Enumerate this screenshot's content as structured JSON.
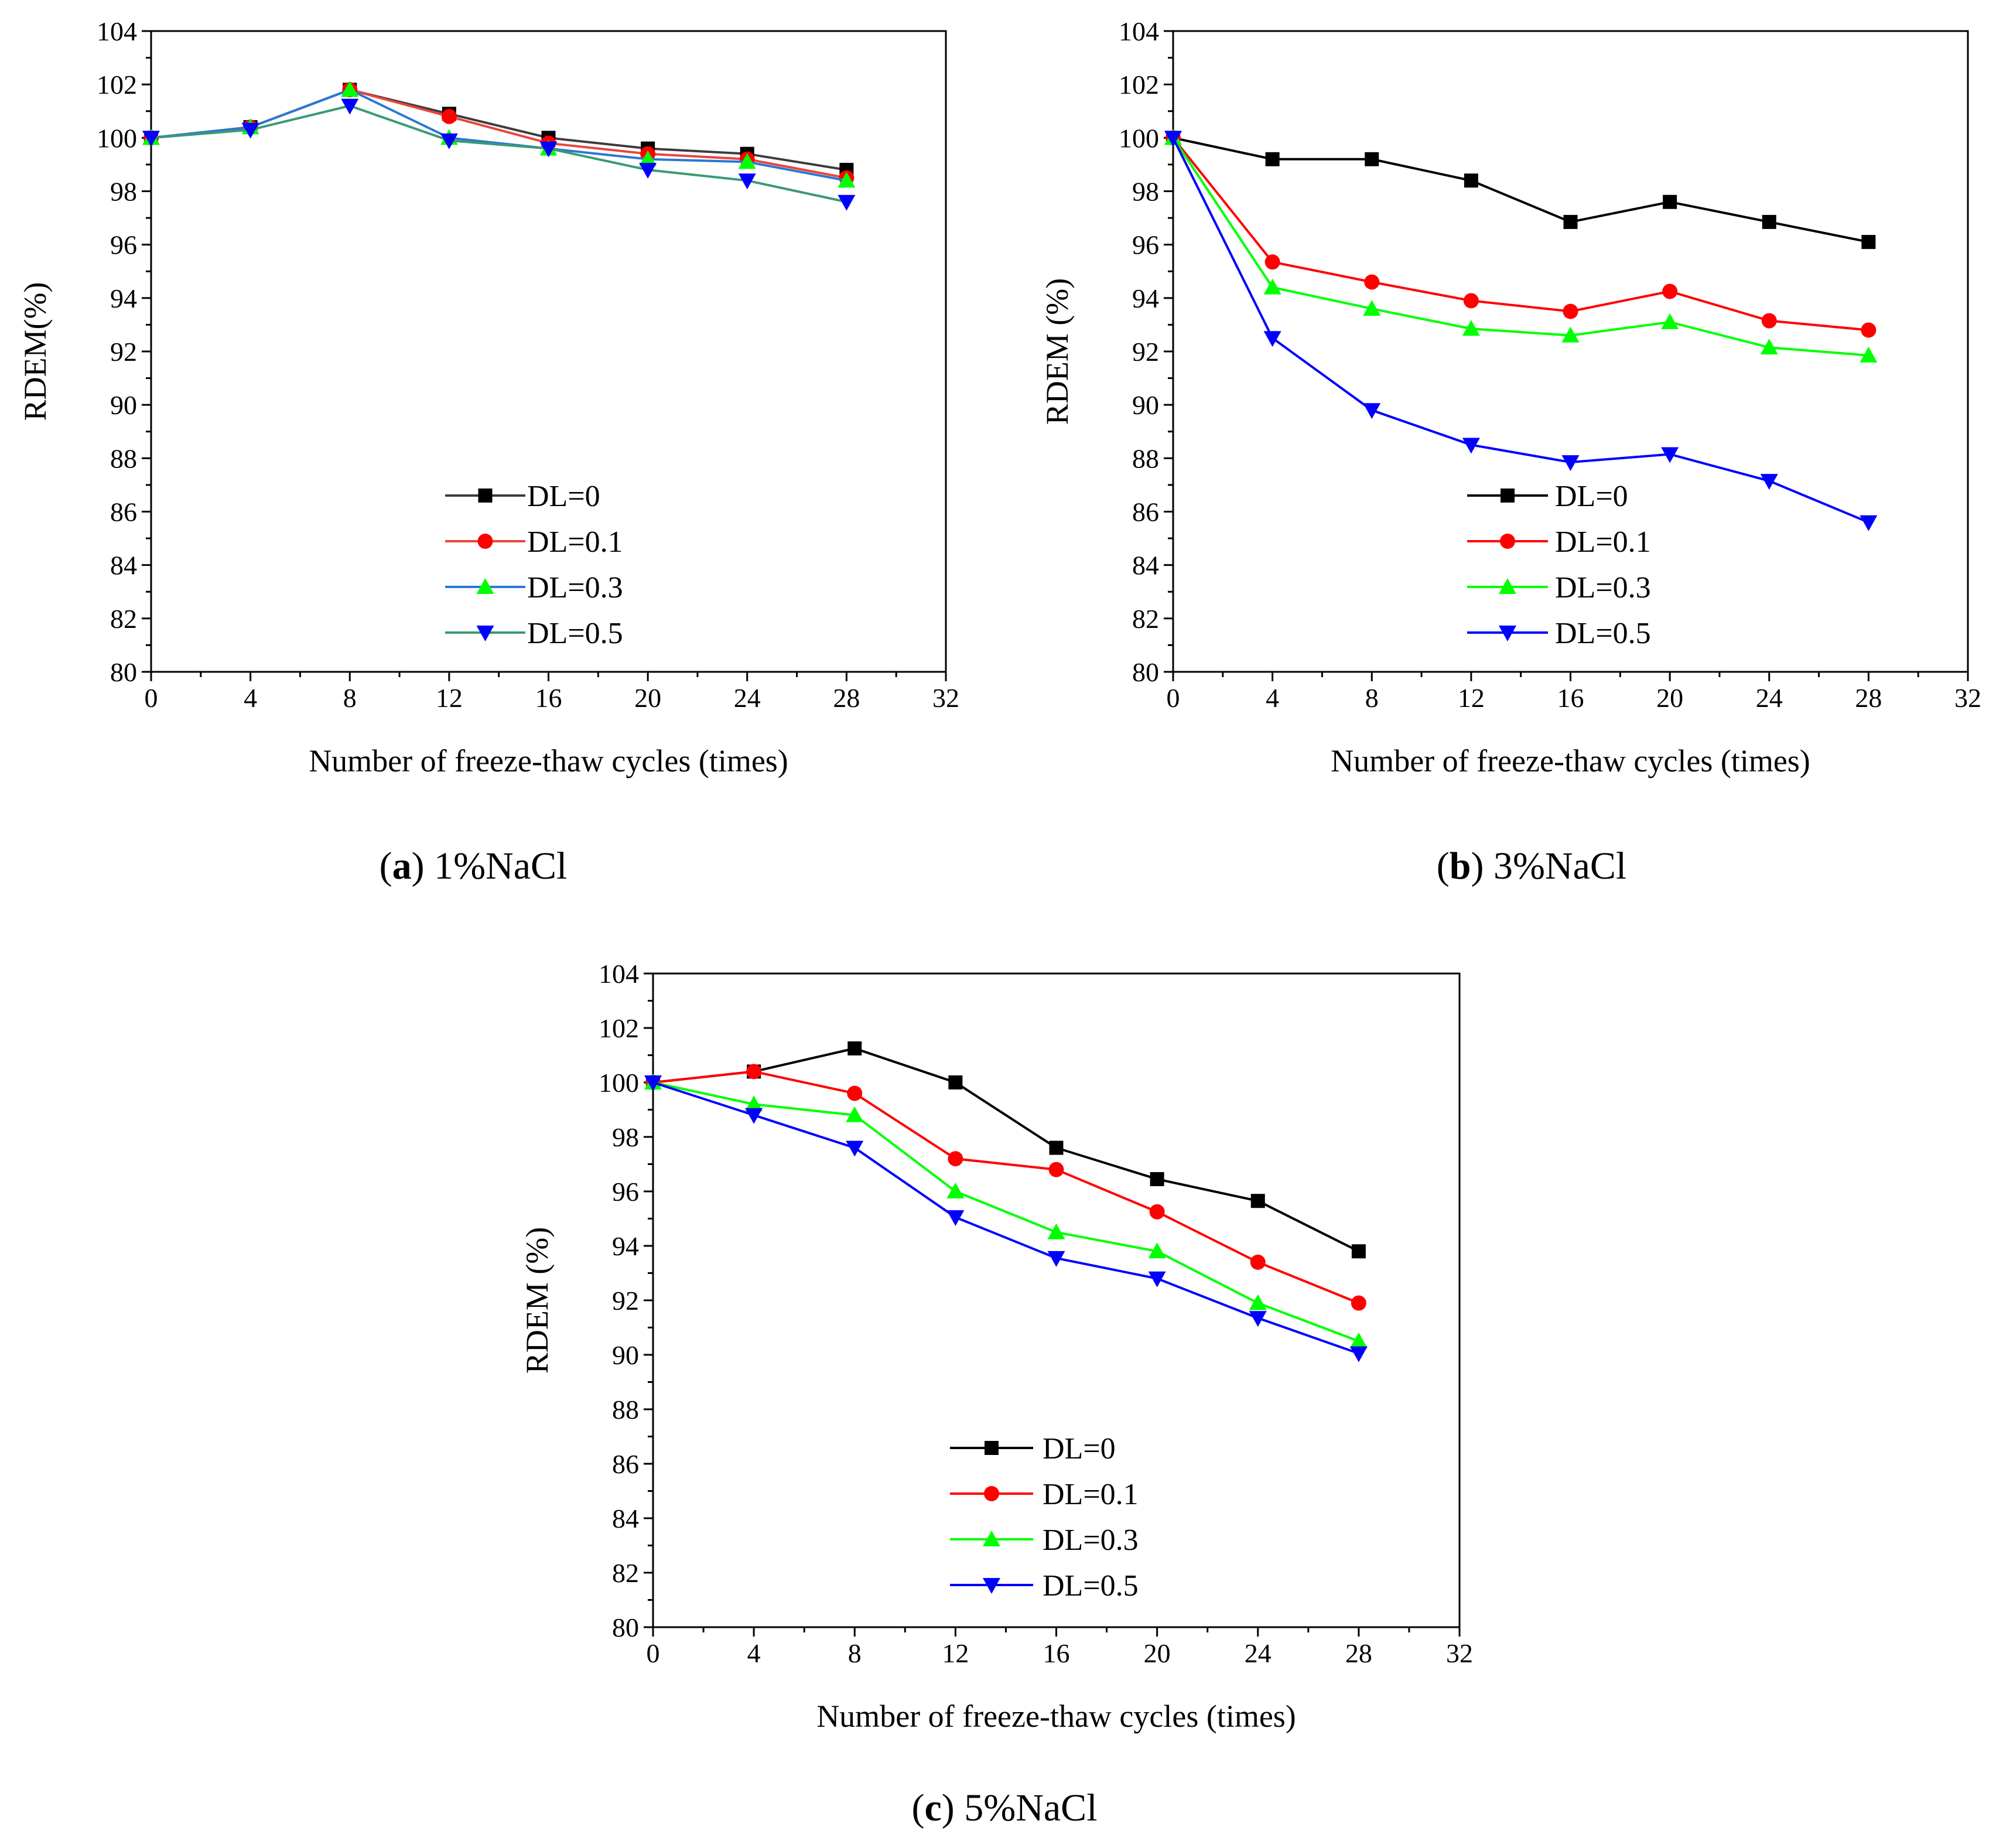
{
  "chart_data": [
    {
      "type": "line",
      "caption_letter": "a",
      "caption_text": "1%NaCl",
      "xlabel": "Number of freeze-thaw cycles (times)",
      "ylabel": "RDEM(%)",
      "xlim": [
        0,
        32
      ],
      "ylim": [
        80,
        104
      ],
      "xticks": [
        "0",
        "4",
        "8",
        "12",
        "16",
        "20",
        "24",
        "28",
        "32"
      ],
      "yticks": [
        "80",
        "82",
        "84",
        "86",
        "88",
        "90",
        "92",
        "94",
        "96",
        "98",
        "100",
        "102",
        "104"
      ],
      "legend_position": "bottom-center",
      "x": [
        0,
        4,
        8,
        12,
        16,
        20,
        24,
        28
      ],
      "series": [
        {
          "name": "DL=0",
          "color": "#3c3c3c",
          "marker": "square",
          "values": [
            100,
            100.4,
            101.8,
            100.9,
            100.0,
            99.6,
            99.4,
            98.8
          ]
        },
        {
          "name": "DL=0.1",
          "color": "#e8453c",
          "marker": "circle",
          "values": [
            100,
            100.4,
            101.8,
            100.8,
            99.8,
            99.4,
            99.2,
            98.5
          ]
        },
        {
          "name": "DL=0.3",
          "color": "#2a78d4",
          "marker": "triangle-up",
          "values": [
            100,
            100.4,
            101.8,
            100.0,
            99.6,
            99.2,
            99.1,
            98.4
          ]
        },
        {
          "name": "DL=0.5",
          "color": "#3a9a72",
          "marker": "triangle-down",
          "values": [
            100,
            100.3,
            101.2,
            99.9,
            99.6,
            98.8,
            98.4,
            97.6
          ]
        }
      ],
      "marker_colors": [
        "#000000",
        "#ff0000",
        "#00ff00",
        "#0000ff"
      ]
    },
    {
      "type": "line",
      "caption_letter": "b",
      "caption_text": "3%NaCl",
      "xlabel": "Number of freeze-thaw cycles (times)",
      "ylabel": "RDEM (%)",
      "xlim": [
        0,
        32
      ],
      "ylim": [
        80,
        104
      ],
      "xticks": [
        "0",
        "4",
        "8",
        "12",
        "16",
        "20",
        "24",
        "28",
        "32"
      ],
      "yticks": [
        "80",
        "82",
        "84",
        "86",
        "88",
        "90",
        "92",
        "94",
        "96",
        "98",
        "100",
        "102",
        "104"
      ],
      "legend_position": "bottom-center",
      "x": [
        0,
        4,
        8,
        12,
        16,
        20,
        24,
        28
      ],
      "series": [
        {
          "name": "DL=0",
          "color": "#000000",
          "marker": "square",
          "values": [
            100,
            99.2,
            99.2,
            98.4,
            96.85,
            97.6,
            96.85,
            96.1
          ]
        },
        {
          "name": "DL=0.1",
          "color": "#ff0000",
          "marker": "circle",
          "values": [
            100,
            95.35,
            94.6,
            93.9,
            93.5,
            94.25,
            93.15,
            92.8
          ]
        },
        {
          "name": "DL=0.3",
          "color": "#00ff00",
          "marker": "triangle-up",
          "values": [
            100,
            94.4,
            93.6,
            92.85,
            92.6,
            93.1,
            92.15,
            91.85
          ]
        },
        {
          "name": "DL=0.5",
          "color": "#0000ff",
          "marker": "triangle-down",
          "values": [
            100,
            92.5,
            89.8,
            88.5,
            87.85,
            88.15,
            87.15,
            85.6
          ]
        }
      ],
      "marker_colors": [
        "#000000",
        "#ff0000",
        "#00ff00",
        "#0000ff"
      ]
    },
    {
      "type": "line",
      "caption_letter": "c",
      "caption_text": "5%NaCl",
      "xlabel": "Number of freeze-thaw cycles (times)",
      "ylabel": "RDEM (%)",
      "xlim": [
        0,
        32
      ],
      "ylim": [
        80,
        104
      ],
      "xticks": [
        "0",
        "4",
        "8",
        "12",
        "16",
        "20",
        "24",
        "28",
        "32"
      ],
      "yticks": [
        "80",
        "82",
        "84",
        "86",
        "88",
        "90",
        "92",
        "94",
        "96",
        "98",
        "100",
        "102",
        "104"
      ],
      "legend_position": "bottom-center",
      "x": [
        0,
        4,
        8,
        12,
        16,
        20,
        24,
        28
      ],
      "series": [
        {
          "name": "DL=0",
          "color": "#000000",
          "marker": "square",
          "values": [
            100,
            100.4,
            101.25,
            100.0,
            97.6,
            96.45,
            95.65,
            93.8
          ]
        },
        {
          "name": "DL=0.1",
          "color": "#ff0000",
          "marker": "circle",
          "values": [
            100,
            100.4,
            99.6,
            97.2,
            96.8,
            95.25,
            93.4,
            91.9
          ]
        },
        {
          "name": "DL=0.3",
          "color": "#00ff00",
          "marker": "triangle-up",
          "values": [
            100,
            99.2,
            98.8,
            96.0,
            94.5,
            93.8,
            91.9,
            90.5
          ]
        },
        {
          "name": "DL=0.5",
          "color": "#0000ff",
          "marker": "triangle-down",
          "values": [
            100,
            98.8,
            97.6,
            95.05,
            93.55,
            92.8,
            91.35,
            90.05
          ]
        }
      ],
      "marker_colors": [
        "#000000",
        "#ff0000",
        "#00ff00",
        "#0000ff"
      ]
    }
  ]
}
